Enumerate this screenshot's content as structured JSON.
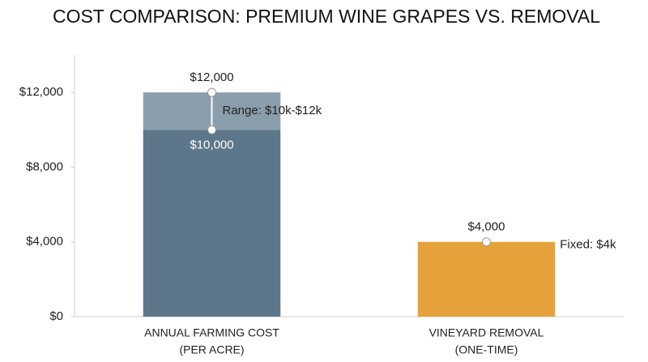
{
  "chart_data": {
    "type": "range_bar",
    "title": "COST COMPARISON: PREMIUM WINE GRAPES VS. REMOVAL",
    "categories": [
      [
        "ANNUAL FARMING COST",
        "(PER ACRE)"
      ],
      [
        "VINEYARD REMOVAL",
        "(ONE-TIME)"
      ]
    ],
    "values": [
      12000,
      4000
    ],
    "value_labels": [
      "$12,000",
      "$4,000"
    ],
    "low_values": [
      10000,
      null
    ],
    "low_value_labels": [
      "$10,000",
      null
    ],
    "annotations": [
      "Range: $10k-$12k",
      "Fixed: $4k"
    ],
    "colors": [
      "#5e7689",
      "#e5a23a"
    ],
    "range_color": "#8b9eab",
    "ylim": [
      0,
      14000
    ],
    "yticks": [
      {
        "value": 0,
        "label": "$0"
      },
      {
        "value": 4000,
        "label": "$4,000"
      },
      {
        "value": 8000,
        "label": "$8,000"
      },
      {
        "value": 12000,
        "label": "$12,000"
      }
    ],
    "grid": false
  }
}
